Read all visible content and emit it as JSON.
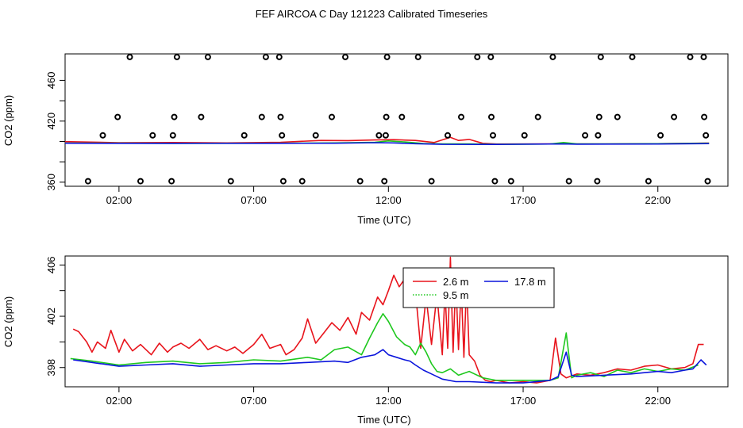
{
  "title": "FEF AIRCOA C  Day 121223  Calibrated Timeseries",
  "colors": {
    "h26": "#e8141c",
    "h95": "#1ec81e",
    "h178": "#0a14dc",
    "frame": "#000000"
  },
  "chart_data": [
    {
      "type": "scatter",
      "xlabel": "Time (UTC)",
      "ylabel": "CO2 (ppm)",
      "xlim": [
        0,
        24.6
      ],
      "ylim": [
        356,
        486
      ],
      "x_ticks": [
        2,
        7,
        12,
        17,
        22
      ],
      "x_tick_labels": [
        "02:00",
        "07:00",
        "12:00",
        "17:00",
        "22:00"
      ],
      "y_ticks": [
        360,
        380,
        400,
        420,
        440,
        460
      ],
      "y_tick_labels": [
        "360",
        "",
        "",
        "420",
        "",
        "460"
      ],
      "markers": [
        {
          "x": 0.85,
          "y": 361
        },
        {
          "x": 1.4,
          "y": 406
        },
        {
          "x": 1.95,
          "y": 424
        },
        {
          "x": 2.4,
          "y": 483
        },
        {
          "x": 2.8,
          "y": 361
        },
        {
          "x": 3.25,
          "y": 406
        },
        {
          "x": 3.95,
          "y": 361
        },
        {
          "x": 4.0,
          "y": 406
        },
        {
          "x": 4.05,
          "y": 424
        },
        {
          "x": 4.15,
          "y": 483
        },
        {
          "x": 5.05,
          "y": 424
        },
        {
          "x": 5.3,
          "y": 483
        },
        {
          "x": 6.15,
          "y": 361
        },
        {
          "x": 6.65,
          "y": 406
        },
        {
          "x": 7.3,
          "y": 424
        },
        {
          "x": 7.45,
          "y": 483
        },
        {
          "x": 7.95,
          "y": 483
        },
        {
          "x": 8.0,
          "y": 424
        },
        {
          "x": 8.05,
          "y": 406
        },
        {
          "x": 8.1,
          "y": 361
        },
        {
          "x": 8.8,
          "y": 361
        },
        {
          "x": 9.3,
          "y": 406
        },
        {
          "x": 9.9,
          "y": 424
        },
        {
          "x": 10.4,
          "y": 483
        },
        {
          "x": 10.95,
          "y": 361
        },
        {
          "x": 11.65,
          "y": 406
        },
        {
          "x": 11.85,
          "y": 361
        },
        {
          "x": 11.9,
          "y": 406
        },
        {
          "x": 11.92,
          "y": 424
        },
        {
          "x": 11.95,
          "y": 483
        },
        {
          "x": 12.5,
          "y": 424
        },
        {
          "x": 13.1,
          "y": 483
        },
        {
          "x": 13.6,
          "y": 361
        },
        {
          "x": 14.2,
          "y": 406
        },
        {
          "x": 14.7,
          "y": 424
        },
        {
          "x": 15.3,
          "y": 483
        },
        {
          "x": 15.8,
          "y": 483
        },
        {
          "x": 15.82,
          "y": 424
        },
        {
          "x": 15.88,
          "y": 406
        },
        {
          "x": 15.95,
          "y": 361
        },
        {
          "x": 16.55,
          "y": 361
        },
        {
          "x": 17.05,
          "y": 406
        },
        {
          "x": 17.55,
          "y": 424
        },
        {
          "x": 18.1,
          "y": 483
        },
        {
          "x": 18.7,
          "y": 361
        },
        {
          "x": 19.3,
          "y": 406
        },
        {
          "x": 19.75,
          "y": 361
        },
        {
          "x": 19.78,
          "y": 406
        },
        {
          "x": 19.82,
          "y": 424
        },
        {
          "x": 19.88,
          "y": 483
        },
        {
          "x": 20.5,
          "y": 424
        },
        {
          "x": 21.05,
          "y": 483
        },
        {
          "x": 21.65,
          "y": 361
        },
        {
          "x": 22.1,
          "y": 406
        },
        {
          "x": 22.6,
          "y": 424
        },
        {
          "x": 23.2,
          "y": 483
        },
        {
          "x": 23.7,
          "y": 483
        },
        {
          "x": 23.72,
          "y": 424
        },
        {
          "x": 23.78,
          "y": 406
        },
        {
          "x": 23.85,
          "y": 361
        }
      ],
      "series": [
        {
          "color": "h26",
          "x": [
            0,
            2,
            4,
            6,
            8,
            9.5,
            10.5,
            11.5,
            12.2,
            13,
            13.7,
            14.3,
            14.6,
            15,
            15.5,
            16,
            18,
            20,
            22,
            23.9
          ],
          "y": [
            399.8,
            398.8,
            399,
            398.6,
            399.2,
            401,
            400.8,
            401.5,
            401.8,
            401,
            399,
            404,
            401,
            402,
            398.2,
            397.5,
            397.6,
            397.5,
            397.8,
            398.4
          ]
        },
        {
          "color": "h95",
          "x": [
            0,
            4,
            8,
            10,
            11.5,
            12,
            12.6,
            13.3,
            14,
            15,
            16,
            18,
            18.5,
            19,
            22,
            23.9
          ],
          "y": [
            398.4,
            398.2,
            398.3,
            398.6,
            399.2,
            400.5,
            399.5,
            398,
            397.6,
            397.6,
            397.2,
            397.5,
            399,
            397.6,
            397.8,
            398.3
          ]
        },
        {
          "color": "h178",
          "x": [
            0,
            4,
            8,
            10,
            11.5,
            12.2,
            13,
            14,
            16,
            18.5,
            19,
            22,
            23.9
          ],
          "y": [
            398.3,
            398.1,
            398.2,
            398.3,
            398.8,
            398.6,
            397.8,
            397.2,
            397.1,
            397.6,
            397.3,
            397.5,
            397.9
          ]
        }
      ]
    },
    {
      "type": "line",
      "xlabel": "Time (UTC)",
      "ylabel": "CO2 (ppm)",
      "xlim": [
        0,
        24.6
      ],
      "ylim": [
        396.5,
        406.7
      ],
      "x_ticks": [
        2,
        7,
        12,
        17,
        22
      ],
      "x_tick_labels": [
        "02:00",
        "07:00",
        "12:00",
        "17:00",
        "22:00"
      ],
      "y_ticks": [
        398,
        400,
        402,
        404,
        406
      ],
      "y_tick_labels": [
        "398",
        "",
        "402",
        "",
        "406"
      ],
      "legend": {
        "placement": "top-center",
        "entries": [
          {
            "label": "2.6 m",
            "color": "h26",
            "dash": "solid"
          },
          {
            "label": "17.8 m",
            "color": "h178",
            "dash": "solid"
          },
          {
            "label": "9.5 m",
            "color": "h95",
            "dash": "dotted"
          }
        ]
      },
      "series": [
        {
          "name": "2.6 m",
          "color": "h26",
          "x": [
            0.3,
            0.5,
            0.8,
            1.0,
            1.2,
            1.5,
            1.7,
            2.0,
            2.2,
            2.5,
            2.8,
            3.0,
            3.2,
            3.5,
            3.8,
            4.0,
            4.3,
            4.6,
            5.0,
            5.3,
            5.6,
            6.0,
            6.3,
            6.6,
            7.0,
            7.3,
            7.6,
            8.0,
            8.2,
            8.5,
            8.8,
            9.0,
            9.3,
            9.6,
            9.9,
            10.2,
            10.5,
            10.8,
            11.0,
            11.3,
            11.6,
            11.8,
            12.0,
            12.2,
            12.4,
            12.6,
            12.8,
            13.0,
            13.2,
            13.4,
            13.6,
            13.8,
            14.0,
            14.1,
            14.2,
            14.3,
            14.4,
            14.5,
            14.6,
            14.7,
            14.8,
            14.9,
            15.0,
            15.2,
            15.4,
            15.6,
            15.8,
            16.0,
            16.5,
            17.0,
            17.5,
            18.0,
            18.2,
            18.4,
            18.6,
            19.0,
            19.5,
            20.0,
            20.5,
            21.0,
            21.5,
            22.0,
            22.5,
            23.0,
            23.3,
            23.5,
            23.7
          ],
          "y": [
            401.0,
            400.8,
            400.0,
            399.2,
            400.0,
            399.5,
            400.9,
            399.2,
            400.2,
            399.3,
            399.8,
            399.4,
            399.0,
            399.9,
            399.2,
            399.6,
            399.9,
            399.5,
            400.2,
            399.4,
            399.7,
            399.3,
            399.6,
            399.1,
            399.8,
            400.6,
            399.5,
            399.8,
            399.0,
            399.4,
            400.3,
            401.8,
            399.9,
            400.7,
            401.5,
            400.9,
            401.9,
            400.6,
            402.3,
            401.7,
            403.5,
            402.9,
            404.0,
            405.2,
            404.3,
            404.9,
            403.0,
            404.0,
            399.5,
            403.5,
            399.8,
            403.7,
            399.0,
            404.0,
            399.5,
            406.6,
            399.2,
            404.9,
            399.4,
            404.4,
            398.8,
            404.7,
            399.0,
            398.5,
            397.4,
            397.0,
            396.9,
            397.0,
            396.8,
            396.9,
            396.8,
            397.0,
            400.3,
            397.5,
            397.2,
            397.5,
            397.4,
            397.6,
            397.9,
            397.8,
            398.1,
            398.2,
            397.9,
            398.0,
            398.3,
            399.8,
            399.8
          ]
        },
        {
          "name": "9.5 m",
          "color": "h95",
          "x": [
            0.2,
            1.0,
            2.0,
            3.0,
            4.0,
            5.0,
            6.0,
            7.0,
            8.0,
            9.0,
            9.5,
            10.0,
            10.5,
            11.0,
            11.3,
            11.6,
            11.8,
            12.0,
            12.3,
            12.6,
            12.8,
            13.0,
            13.2,
            13.4,
            13.6,
            13.8,
            14.0,
            14.3,
            14.6,
            15.0,
            15.5,
            16.0,
            17.0,
            18.0,
            18.3,
            18.6,
            18.8,
            19.0,
            19.5,
            20.0,
            20.5,
            21.0,
            21.5,
            22.0,
            22.5,
            23.0,
            23.5
          ],
          "y": [
            398.7,
            398.5,
            398.2,
            398.4,
            398.5,
            398.3,
            398.4,
            398.6,
            398.5,
            398.8,
            398.6,
            399.4,
            399.6,
            399.0,
            400.3,
            401.5,
            402.2,
            401.6,
            400.4,
            399.8,
            399.6,
            399.0,
            399.9,
            399.2,
            398.3,
            397.7,
            397.6,
            397.9,
            397.4,
            397.7,
            397.2,
            397.0,
            397.0,
            397.0,
            397.2,
            400.7,
            397.2,
            397.4,
            397.6,
            397.3,
            397.8,
            397.6,
            397.9,
            397.7,
            397.9,
            397.8,
            398.2
          ]
        },
        {
          "name": "17.8 m",
          "color": "h178",
          "x": [
            0.3,
            1.0,
            2.0,
            3.0,
            4.0,
            5.0,
            6.0,
            7.0,
            8.0,
            9.0,
            10.0,
            10.5,
            11.0,
            11.5,
            11.8,
            12.0,
            12.3,
            12.6,
            12.8,
            13.0,
            13.3,
            13.6,
            14.0,
            14.5,
            15.0,
            16.0,
            17.0,
            18.0,
            18.3,
            18.6,
            18.8,
            19.0,
            20.0,
            21.0,
            22.0,
            22.5,
            23.0,
            23.3,
            23.6,
            23.8
          ],
          "y": [
            398.6,
            398.4,
            398.1,
            398.2,
            398.3,
            398.1,
            398.2,
            398.3,
            398.3,
            398.4,
            398.5,
            398.4,
            398.8,
            399.0,
            399.4,
            399.0,
            398.8,
            398.6,
            398.5,
            398.2,
            397.8,
            397.5,
            397.1,
            396.9,
            396.9,
            396.8,
            396.8,
            397.0,
            397.3,
            399.2,
            397.4,
            397.3,
            397.4,
            397.5,
            397.7,
            397.6,
            397.8,
            397.9,
            398.6,
            398.2
          ]
        }
      ]
    }
  ]
}
